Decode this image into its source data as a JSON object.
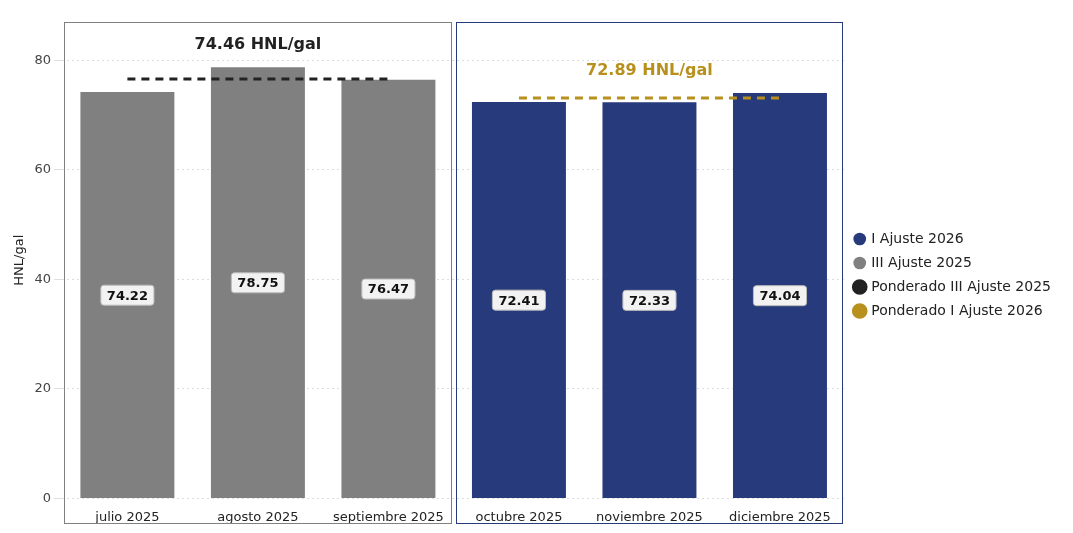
{
  "chart_data": {
    "type": "bar",
    "ylabel": "HNL/gal",
    "categories": [
      "julio 2025",
      "agosto 2025",
      "septiembre 2025",
      "octubre 2025",
      "noviembre 2025",
      "diciembre 2025"
    ],
    "series": [
      {
        "name": "I Ajuste 2026",
        "color": "#263a7c",
        "values": [
          null,
          null,
          null,
          72.41,
          72.33,
          74.04
        ],
        "value_labels": [
          null,
          null,
          null,
          "72.41",
          "72.33",
          "74.04"
        ]
      },
      {
        "name": "III Ajuste 2025",
        "color": "#808080",
        "values": [
          74.22,
          78.75,
          76.47,
          null,
          null,
          null
        ],
        "value_labels": [
          "74.22",
          "78.75",
          "76.47",
          null,
          null,
          null
        ]
      },
      {
        "name": "Ponderado III Ajuste 2025",
        "type": "line",
        "color": "#222222",
        "line_style": "dashed",
        "values": [
          76.6,
          76.6,
          76.6,
          null,
          null,
          null
        ]
      },
      {
        "name": "Ponderado I Ajuste 2026",
        "type": "line",
        "color": "#b8901e",
        "line_style": "dashed",
        "values": [
          null,
          null,
          null,
          73.1,
          73.1,
          73.1
        ]
      }
    ],
    "annotations": [
      "74.46 HNL/gal",
      "72.89 HNL/gal"
    ],
    "marker": "none",
    "ylim": [
      0,
      87
    ],
    "yticks": [
      0,
      20,
      40,
      60,
      80
    ],
    "grid": "y",
    "legend": "right"
  }
}
